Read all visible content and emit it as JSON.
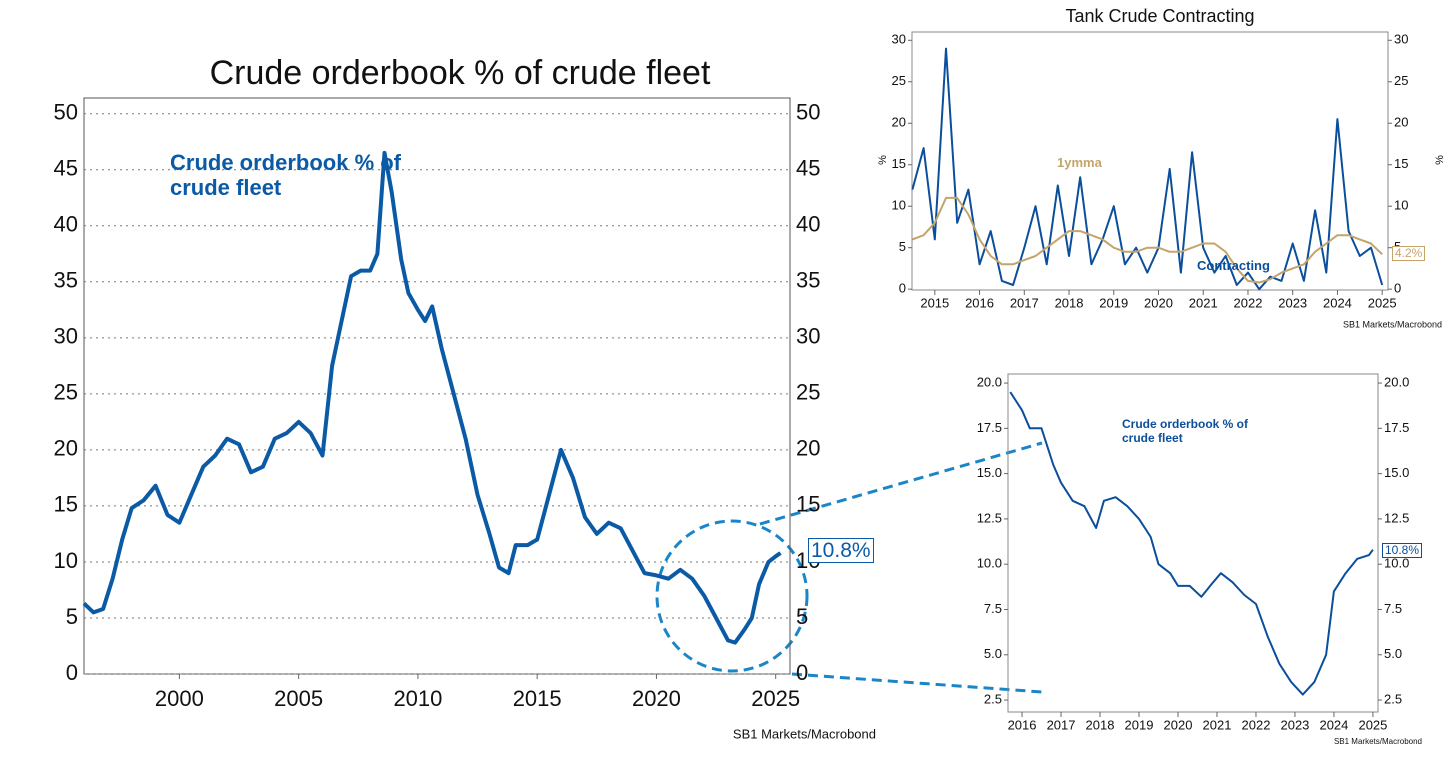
{
  "chart_data": [
    {
      "type": "line",
      "title": "Crude orderbook % of crude fleet",
      "end_label": "10.8%",
      "source": "SB1 Markets/Macrobond",
      "x": [
        1996.0,
        1996.4,
        1996.8,
        1997.2,
        1997.6,
        1998.0,
        1998.5,
        1999.0,
        1999.5,
        2000.0,
        2000.5,
        2001.0,
        2001.5,
        2002.0,
        2002.5,
        2003.0,
        2003.5,
        2004.0,
        2004.5,
        2005.0,
        2005.5,
        2006.0,
        2006.4,
        2006.8,
        2007.2,
        2007.6,
        2008.0,
        2008.3,
        2008.6,
        2008.9,
        2009.3,
        2009.6,
        2010.0,
        2010.3,
        2010.6,
        2011.0,
        2011.5,
        2012.0,
        2012.5,
        2013.0,
        2013.4,
        2013.8,
        2014.1,
        2014.6,
        2015.0,
        2015.5,
        2016.0,
        2016.5,
        2017.0,
        2017.5,
        2018.0,
        2018.5,
        2019.0,
        2019.5,
        2020.0,
        2020.5,
        2021.0,
        2021.5,
        2022.0,
        2022.5,
        2023.0,
        2023.3,
        2023.7,
        2024.0,
        2024.3,
        2024.7,
        2025.0,
        2025.2
      ],
      "series": [
        {
          "name": "Crude orderbook % of crude fleet",
          "color": "#0b5aa6",
          "values": [
            6.3,
            5.5,
            5.8,
            8.5,
            12,
            14.8,
            15.5,
            16.8,
            14.2,
            13.5,
            16,
            18.5,
            19.5,
            21,
            20.5,
            18,
            18.5,
            21,
            21.5,
            22.5,
            21.5,
            19.5,
            27.5,
            31.5,
            35.5,
            36,
            36,
            37.5,
            46.5,
            43,
            37,
            34,
            32.5,
            31.5,
            32.8,
            29,
            25,
            21,
            16,
            12.5,
            9.5,
            9,
            11.5,
            11.5,
            12,
            16,
            20,
            17.5,
            14,
            12.5,
            13.5,
            13,
            11,
            9,
            8.8,
            8.5,
            9.3,
            8.5,
            7,
            5,
            3,
            2.8,
            4,
            5,
            8,
            10,
            10.5,
            10.8
          ]
        }
      ],
      "xlim": [
        1996,
        2025.6
      ],
      "xticks": [
        2000,
        2005,
        2010,
        2015,
        2020,
        2025
      ],
      "ylim": [
        0,
        51.4
      ],
      "yticks": [
        0,
        5,
        10,
        15,
        20,
        25,
        30,
        35,
        40,
        45,
        50
      ],
      "grid": true
    },
    {
      "type": "line",
      "title": "Tank Crude Contracting",
      "end_label": "4.2%",
      "source": "SB1 Markets/Macrobond",
      "y_label": "%",
      "x": [
        2014.5,
        2014.75,
        2015.0,
        2015.25,
        2015.5,
        2015.75,
        2016.0,
        2016.25,
        2016.5,
        2016.75,
        2017.0,
        2017.25,
        2017.5,
        2017.75,
        2018.0,
        2018.25,
        2018.5,
        2018.75,
        2019.0,
        2019.25,
        2019.5,
        2019.75,
        2020.0,
        2020.25,
        2020.5,
        2020.75,
        2021.0,
        2021.25,
        2021.5,
        2021.75,
        2022.0,
        2022.25,
        2022.5,
        2022.75,
        2023.0,
        2023.25,
        2023.5,
        2023.75,
        2024.0,
        2024.25,
        2024.5,
        2024.75,
        2025.0
      ],
      "series": [
        {
          "name": "Contracting",
          "color": "#0b4f9c",
          "values": [
            12,
            17,
            6,
            29,
            8,
            12,
            3,
            7,
            1,
            0.5,
            5,
            10,
            3,
            12.5,
            4,
            13.5,
            3,
            6,
            10,
            3,
            5,
            2,
            5,
            14.5,
            2,
            16.5,
            5,
            2,
            4,
            0.5,
            2,
            0,
            1.5,
            1,
            5.5,
            1,
            9.5,
            2,
            20.5,
            7,
            4,
            5,
            0.5
          ]
        },
        {
          "name": "1ymma",
          "color": "#c4a46b",
          "values": [
            6,
            6.5,
            8,
            11,
            11,
            9,
            6,
            4,
            3,
            3,
            3.5,
            4,
            5,
            6,
            7,
            7,
            6.5,
            6,
            5,
            4.5,
            4.5,
            5,
            5,
            4.5,
            4.5,
            5,
            5.5,
            5.5,
            4.5,
            2.5,
            1,
            0.8,
            1.2,
            2,
            2.5,
            3,
            4.5,
            5.5,
            6.5,
            6.5,
            6,
            5.5,
            4.2
          ]
        }
      ],
      "xlim": [
        2014.49,
        2025.13
      ],
      "xticks": [
        2015,
        2016,
        2017,
        2018,
        2019,
        2020,
        2021,
        2022,
        2023,
        2024,
        2025
      ],
      "ylim": [
        -0.1,
        31
      ],
      "yticks": [
        0,
        5,
        10,
        15,
        20,
        25,
        30
      ],
      "grid": false
    },
    {
      "type": "line",
      "end_label": "10.8%",
      "source": "SB1 Markets/Macrobond",
      "x": [
        2015.7,
        2016.0,
        2016.2,
        2016.5,
        2016.8,
        2017.0,
        2017.3,
        2017.6,
        2017.9,
        2018.1,
        2018.4,
        2018.7,
        2019.0,
        2019.3,
        2019.5,
        2019.8,
        2020.0,
        2020.3,
        2020.6,
        2020.9,
        2021.1,
        2021.4,
        2021.7,
        2022.0,
        2022.3,
        2022.6,
        2022.9,
        2023.2,
        2023.5,
        2023.8,
        2024.0,
        2024.3,
        2024.6,
        2024.9,
        2025.0
      ],
      "series": [
        {
          "name": "Crude orderbook % of crude fleet",
          "color": "#0b4f9c",
          "values": [
            19.5,
            18.5,
            17.5,
            17.5,
            15.5,
            14.5,
            13.5,
            13.2,
            12,
            13.5,
            13.7,
            13.2,
            12.5,
            11.5,
            10,
            9.5,
            8.8,
            8.8,
            8.2,
            9,
            9.5,
            9,
            8.3,
            7.8,
            6,
            4.5,
            3.5,
            2.8,
            3.5,
            5,
            8.5,
            9.5,
            10.3,
            10.5,
            10.8
          ]
        }
      ],
      "xlim": [
        2015.64,
        2025.13
      ],
      "xticks": [
        2016,
        2017,
        2018,
        2019,
        2020,
        2021,
        2022,
        2023,
        2024,
        2025
      ],
      "ylim": [
        1.84,
        20.5
      ],
      "yticks": [
        {
          "value": 2.5,
          "label": "2.5"
        },
        {
          "value": 5,
          "label": "5.0"
        },
        {
          "value": 7.5,
          "label": "7.5"
        },
        {
          "value": 10,
          "label": "10.0"
        },
        {
          "value": 12.5,
          "label": "12.5"
        },
        {
          "value": 15,
          "label": "15.0"
        },
        {
          "value": 17.5,
          "label": "17.5"
        },
        {
          "value": 20,
          "label": "20.0"
        }
      ],
      "grid": false
    }
  ]
}
